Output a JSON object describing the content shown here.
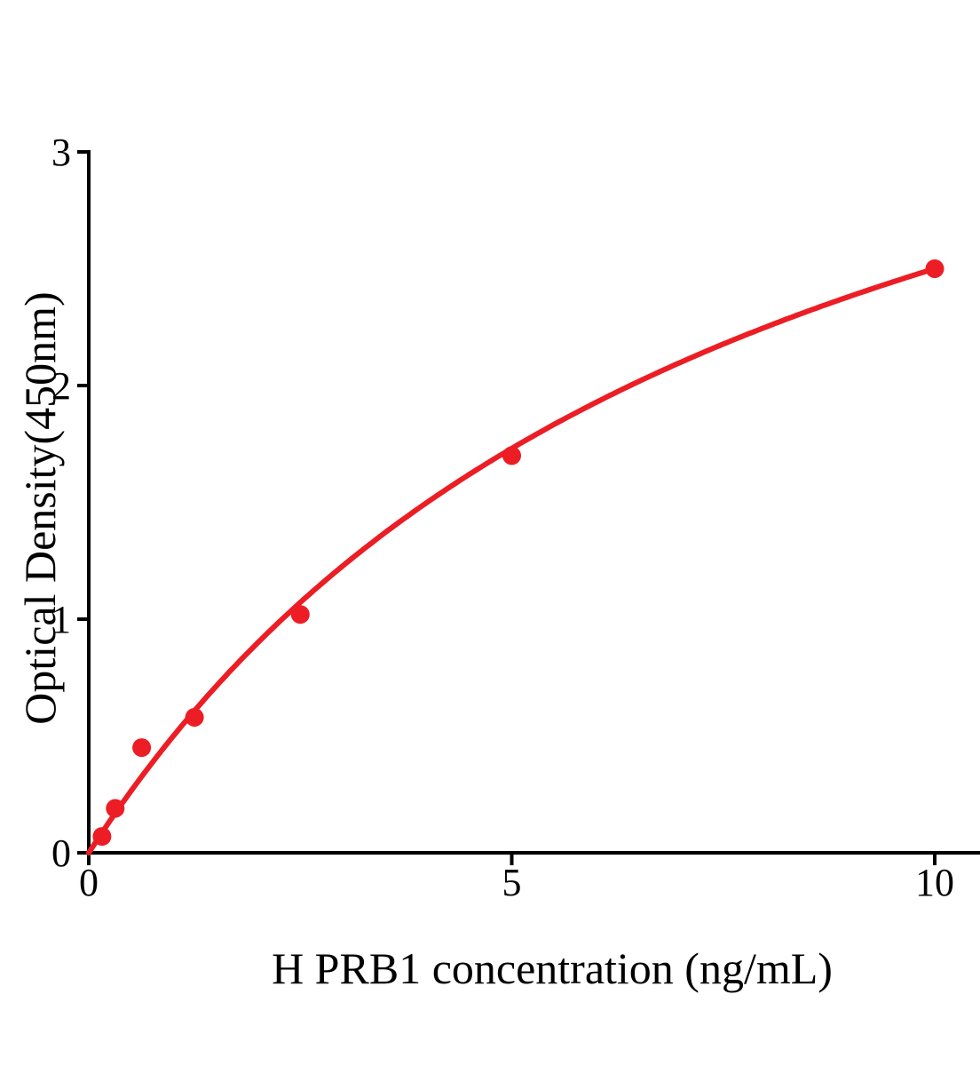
{
  "chart_data": {
    "type": "scatter",
    "title": "",
    "xlabel": "H PRB1 concentration (ng/mL)",
    "ylabel": "Optical Density(450nm)",
    "points": [
      {
        "x": 0.156,
        "y": 0.07
      },
      {
        "x": 0.3125,
        "y": 0.19
      },
      {
        "x": 0.625,
        "y": 0.45
      },
      {
        "x": 1.25,
        "y": 0.58
      },
      {
        "x": 2.5,
        "y": 1.02
      },
      {
        "x": 5,
        "y": 1.7
      },
      {
        "x": 10,
        "y": 2.5
      }
    ],
    "x_ticks": [
      0,
      5,
      10
    ],
    "y_ticks": [
      0,
      1,
      2,
      3
    ],
    "xlim": [
      0,
      10.55
    ],
    "ylim": [
      0,
      3
    ],
    "grid": false,
    "legend": false,
    "fit_curve": {
      "model": "saturation-binding trendline",
      "equation": "y = Bmax * x / (Kd + x)",
      "Bmax": 4.5,
      "Kd": 8,
      "x_range": [
        0,
        10
      ]
    },
    "marker_color": "#EC1D24",
    "line_color": "#EC1D24",
    "axis_color": "#000000",
    "background_color": "#FFFFFF",
    "tick_label_color": "#000000"
  }
}
